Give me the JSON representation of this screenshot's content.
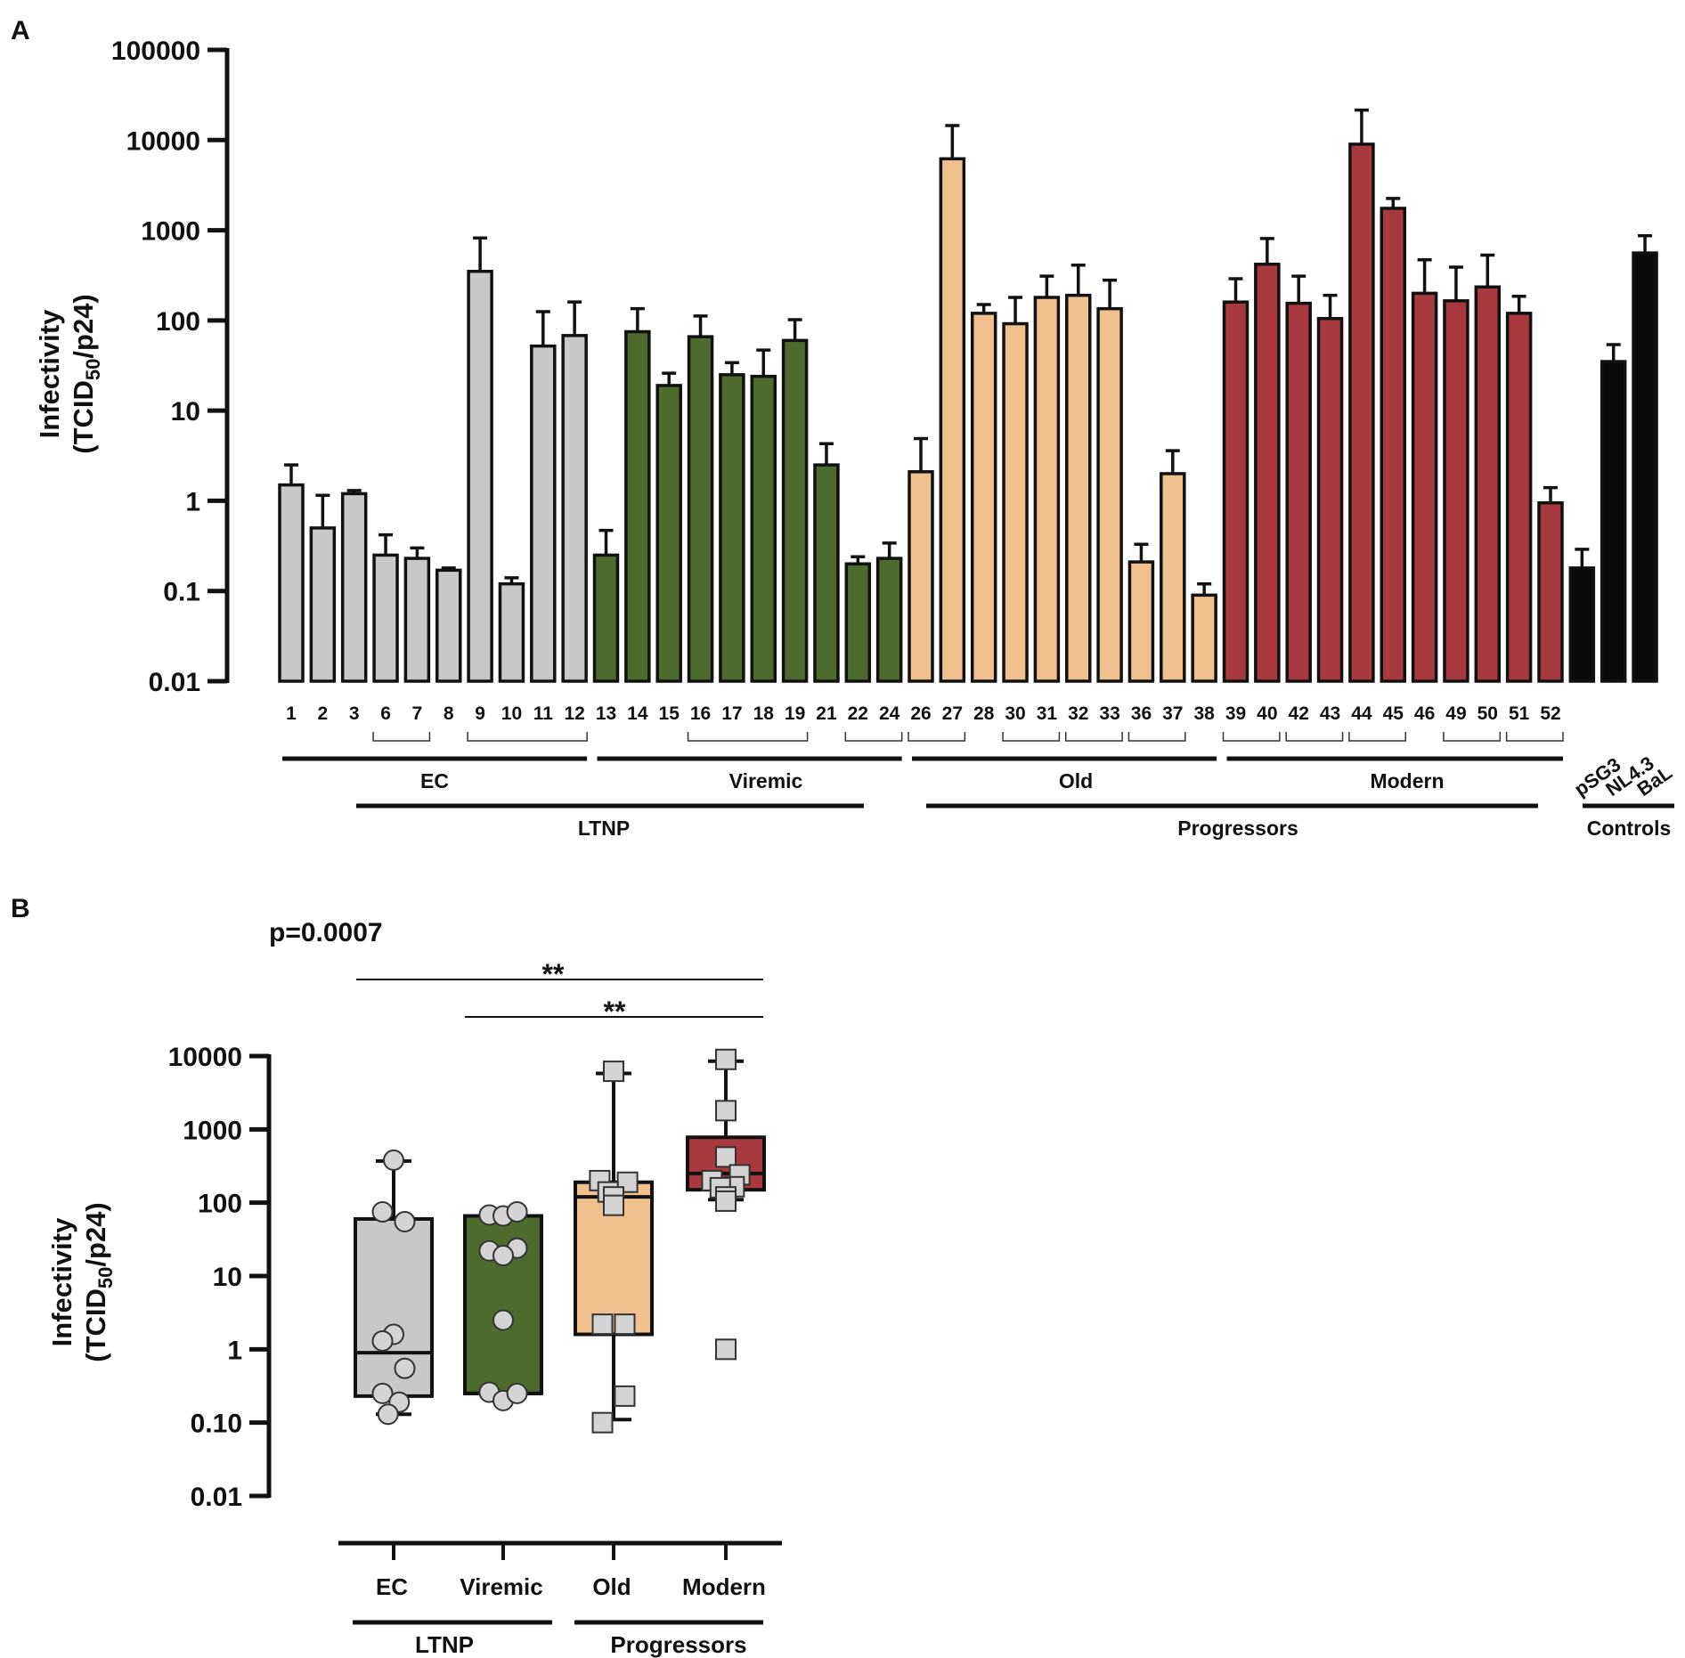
{
  "chart_data": [
    {
      "panel": "A",
      "type": "bar",
      "scale": "log",
      "ylabel_line1": "Infectivity",
      "ylabel_line2_pre": "(TCID",
      "ylabel_line2_sub": "50",
      "ylabel_line2_post": "/p24)",
      "ylim": [
        0.01,
        100000
      ],
      "yticks": [
        {
          "value": 100000,
          "label": "100000"
        },
        {
          "value": 10000,
          "label": "10000"
        },
        {
          "value": 1000,
          "label": "1000"
        },
        {
          "value": 100,
          "label": "100"
        },
        {
          "value": 10,
          "label": "10"
        },
        {
          "value": 1,
          "label": "1"
        },
        {
          "value": 0.1,
          "label": "0.1"
        },
        {
          "value": 0.01,
          "label": "0.01"
        }
      ],
      "bars": [
        {
          "label": "1",
          "value": 1.5,
          "error": 2.5,
          "color": "#c8c8c8"
        },
        {
          "label": "2",
          "value": 0.5,
          "error": 1.15,
          "color": "#c8c8c8"
        },
        {
          "label": "3",
          "value": 1.2,
          "error": 1.3,
          "color": "#c8c8c8"
        },
        {
          "label": "6",
          "value": 0.25,
          "error": 0.42,
          "color": "#c8c8c8"
        },
        {
          "label": "7",
          "value": 0.23,
          "error": 0.3,
          "color": "#c8c8c8"
        },
        {
          "label": "8",
          "value": 0.17,
          "error": 0.18,
          "color": "#c8c8c8"
        },
        {
          "label": "9",
          "value": 350,
          "error": 820,
          "color": "#c8c8c8"
        },
        {
          "label": "10",
          "value": 0.12,
          "error": 0.14,
          "color": "#c8c8c8"
        },
        {
          "label": "11",
          "value": 52,
          "error": 125,
          "color": "#c8c8c8"
        },
        {
          "label": "12",
          "value": 68,
          "error": 160,
          "color": "#c8c8c8"
        },
        {
          "label": "13",
          "value": 0.25,
          "error": 0.47,
          "color": "#4e6b2e"
        },
        {
          "label": "14",
          "value": 75,
          "error": 135,
          "color": "#4e6b2e"
        },
        {
          "label": "15",
          "value": 19,
          "error": 26,
          "color": "#4e6b2e"
        },
        {
          "label": "16",
          "value": 66,
          "error": 112,
          "color": "#4e6b2e"
        },
        {
          "label": "17",
          "value": 25,
          "error": 34,
          "color": "#4e6b2e"
        },
        {
          "label": "18",
          "value": 24,
          "error": 47,
          "color": "#4e6b2e"
        },
        {
          "label": "19",
          "value": 60,
          "error": 102,
          "color": "#4e6b2e"
        },
        {
          "label": "21",
          "value": 2.5,
          "error": 4.3,
          "color": "#4e6b2e"
        },
        {
          "label": "22",
          "value": 0.2,
          "error": 0.24,
          "color": "#4e6b2e"
        },
        {
          "label": "24",
          "value": 0.23,
          "error": 0.34,
          "color": "#4e6b2e"
        },
        {
          "label": "26",
          "value": 2.1,
          "error": 4.9,
          "color": "#f0c08e"
        },
        {
          "label": "27",
          "value": 6200,
          "error": 14500,
          "color": "#f0c08e"
        },
        {
          "label": "28",
          "value": 120,
          "error": 150,
          "color": "#f0c08e"
        },
        {
          "label": "30",
          "value": 92,
          "error": 180,
          "color": "#f0c08e"
        },
        {
          "label": "31",
          "value": 180,
          "error": 310,
          "color": "#f0c08e"
        },
        {
          "label": "32",
          "value": 190,
          "error": 410,
          "color": "#f0c08e"
        },
        {
          "label": "33",
          "value": 135,
          "error": 280,
          "color": "#f0c08e"
        },
        {
          "label": "36",
          "value": 0.21,
          "error": 0.33,
          "color": "#f0c08e"
        },
        {
          "label": "37",
          "value": 2.0,
          "error": 3.6,
          "color": "#f0c08e"
        },
        {
          "label": "38",
          "value": 0.09,
          "error": 0.12,
          "color": "#f0c08e"
        },
        {
          "label": "39",
          "value": 160,
          "error": 290,
          "color": "#a8393f"
        },
        {
          "label": "40",
          "value": 420,
          "error": 810,
          "color": "#a8393f"
        },
        {
          "label": "42",
          "value": 155,
          "error": 310,
          "color": "#a8393f"
        },
        {
          "label": "43",
          "value": 105,
          "error": 190,
          "color": "#a8393f"
        },
        {
          "label": "44",
          "value": 9000,
          "error": 21500,
          "color": "#a8393f"
        },
        {
          "label": "45",
          "value": 1750,
          "error": 2250,
          "color": "#a8393f"
        },
        {
          "label": "46",
          "value": 200,
          "error": 470,
          "color": "#a8393f"
        },
        {
          "label": "49",
          "value": 165,
          "error": 390,
          "color": "#a8393f"
        },
        {
          "label": "50",
          "value": 235,
          "error": 530,
          "color": "#a8393f"
        },
        {
          "label": "51",
          "value": 120,
          "error": 185,
          "color": "#a8393f"
        },
        {
          "label": "52",
          "value": 0.95,
          "error": 1.4,
          "color": "#a8393f"
        },
        {
          "label": "pSG3",
          "value": 0.18,
          "error": 0.29,
          "color": "#0a0a0a"
        },
        {
          "label": "NL4.3",
          "value": 35,
          "error": 54,
          "color": "#0a0a0a"
        },
        {
          "label": "BaL",
          "value": 560,
          "error": 870,
          "color": "#0a0a0a"
        }
      ],
      "pair_brackets": [
        [
          "6",
          "7"
        ],
        [
          "9",
          "12"
        ],
        [
          "16",
          "19"
        ],
        [
          "22",
          "24"
        ],
        [
          "26",
          "27"
        ],
        [
          "30",
          "31"
        ],
        [
          "32",
          "33"
        ],
        [
          "36",
          "37"
        ],
        [
          "39",
          "40"
        ],
        [
          "42",
          "43"
        ],
        [
          "44",
          "45"
        ],
        [
          "49",
          "50"
        ],
        [
          "51",
          "52"
        ]
      ],
      "groups": [
        {
          "label": "EC",
          "from": "1",
          "to": "12"
        },
        {
          "label": "Viremic",
          "from": "13",
          "to": "24"
        },
        {
          "label": "Old",
          "from": "26",
          "to": "38"
        },
        {
          "label": "Modern",
          "from": "39",
          "to": "52"
        }
      ],
      "supergroups": [
        {
          "label": "LTNP",
          "from": "3",
          "to": "21"
        },
        {
          "label": "Progressors",
          "from": "26",
          "to": "51"
        },
        {
          "label": "Controls",
          "from": "pSG3",
          "to": "BaL"
        }
      ]
    },
    {
      "panel": "B",
      "type": "box",
      "scale": "log",
      "ylabel_line1": "Infectivity",
      "ylabel_line2_pre": "(TCID",
      "ylabel_line2_sub": "50",
      "ylabel_line2_post": "/p24)",
      "ylim": [
        0.01,
        10000
      ],
      "yticks": [
        {
          "value": 10000,
          "label": "10000"
        },
        {
          "value": 1000,
          "label": "1000"
        },
        {
          "value": 100,
          "label": "100"
        },
        {
          "value": 10,
          "label": "10"
        },
        {
          "value": 1,
          "label": "1"
        },
        {
          "value": 0.1,
          "label": "0.10"
        },
        {
          "value": 0.01,
          "label": "0.01"
        }
      ],
      "pvalue": "p=0.0007",
      "comparisons": [
        {
          "from": "EC",
          "to": "Modern",
          "label": "**"
        },
        {
          "from": "Viremic",
          "to": "Modern",
          "label": "**"
        }
      ],
      "boxes": [
        {
          "name": "EC",
          "color": "#c8c8c8",
          "marker": "circle",
          "min": 0.13,
          "q1": 0.23,
          "median": 0.9,
          "q3": 60,
          "max": 370,
          "points": [
            [
              0.0,
              380
            ],
            [
              -0.2,
              75
            ],
            [
              0.2,
              55
            ],
            [
              0.0,
              1.6
            ],
            [
              -0.2,
              1.3
            ],
            [
              0.2,
              0.55
            ],
            [
              -0.2,
              0.25
            ],
            [
              0.1,
              0.19
            ],
            [
              -0.1,
              0.13
            ]
          ]
        },
        {
          "name": "Viremic",
          "color": "#4e6b2e",
          "marker": "circle",
          "min": 0.2,
          "q1": 0.25,
          "median": 0.25,
          "q3": 66,
          "max": 66,
          "points": [
            [
              -0.25,
              68
            ],
            [
              0.0,
              66
            ],
            [
              0.25,
              75
            ],
            [
              -0.25,
              22
            ],
            [
              0.25,
              24
            ],
            [
              0.0,
              19
            ],
            [
              0.0,
              2.5
            ],
            [
              -0.25,
              0.26
            ],
            [
              0.0,
              0.2
            ],
            [
              0.25,
              0.25
            ]
          ]
        },
        {
          "name": "Old",
          "color": "#f0c08e",
          "marker": "square",
          "min": 0.11,
          "q1": 1.6,
          "median": 120,
          "q3": 190,
          "max": 5800,
          "points": [
            [
              0.0,
              6200
            ],
            [
              -0.25,
              200
            ],
            [
              0.25,
              190
            ],
            [
              -0.1,
              140
            ],
            [
              0.0,
              120
            ],
            [
              0.0,
              92
            ],
            [
              -0.2,
              2.2
            ],
            [
              0.2,
              2.2
            ],
            [
              0.2,
              0.23
            ],
            [
              -0.2,
              0.1
            ]
          ]
        },
        {
          "name": "Modern",
          "color": "#a8393f",
          "marker": "square",
          "min": 110,
          "q1": 150,
          "median": 250,
          "q3": 780,
          "max": 8500,
          "points": [
            [
              0.0,
              9000
            ],
            [
              0.0,
              1800
            ],
            [
              0.0,
              420
            ],
            [
              0.25,
              240
            ],
            [
              -0.25,
              200
            ],
            [
              0.15,
              165
            ],
            [
              -0.1,
              160
            ],
            [
              0.0,
              120
            ],
            [
              0.0,
              105
            ],
            [
              0.0,
              1.0
            ]
          ]
        }
      ],
      "supergroups": [
        {
          "label": "LTNP",
          "from": "EC",
          "to": "Viremic"
        },
        {
          "label": "Progressors",
          "from": "Old",
          "to": "Modern"
        }
      ]
    }
  ],
  "panels": {
    "a_label": "A",
    "b_label": "B"
  }
}
